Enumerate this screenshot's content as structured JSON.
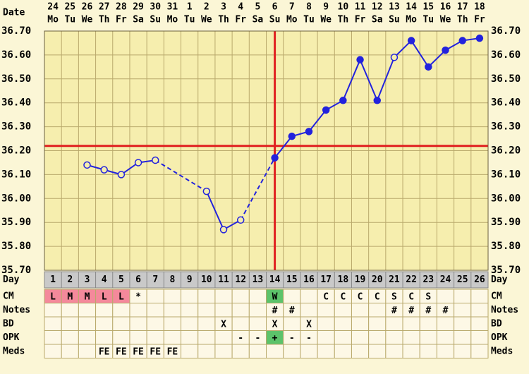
{
  "chart_data": {
    "type": "fertility",
    "header_label": "Date",
    "dates": [
      24,
      25,
      26,
      27,
      28,
      29,
      30,
      31,
      1,
      2,
      3,
      4,
      5,
      6,
      7,
      8,
      9,
      10,
      11,
      12,
      13,
      14,
      15,
      16,
      17,
      18
    ],
    "weekdays": [
      "Mo",
      "Tu",
      "We",
      "Th",
      "Fr",
      "Sa",
      "Su",
      "Mo",
      "Tu",
      "We",
      "Th",
      "Fr",
      "Sa",
      "Su",
      "Mo",
      "Tu",
      "We",
      "Th",
      "Fr",
      "Sa",
      "Su",
      "Mo",
      "Tu",
      "We",
      "Th",
      "Fr"
    ],
    "ylim": [
      35.7,
      36.7
    ],
    "yticks": [
      {
        "value": 35.7,
        "label": "35.70"
      },
      {
        "value": 35.8,
        "label": "35.80"
      },
      {
        "value": 35.9,
        "label": "35.90"
      },
      {
        "value": 36.0,
        "label": "36.00"
      },
      {
        "value": 36.1,
        "label": "36.10"
      },
      {
        "value": 36.2,
        "label": "36.20"
      },
      {
        "value": 36.3,
        "label": "36.30"
      },
      {
        "value": 36.4,
        "label": "36.40"
      },
      {
        "value": 36.5,
        "label": "36.50"
      },
      {
        "value": 36.6,
        "label": "36.60"
      },
      {
        "value": 36.7,
        "label": "36.70"
      }
    ],
    "grid": true,
    "days_label": "Day",
    "days": [
      1,
      2,
      3,
      4,
      5,
      6,
      7,
      8,
      9,
      10,
      11,
      12,
      13,
      14,
      15,
      16,
      17,
      18,
      19,
      20,
      21,
      22,
      23,
      24,
      25,
      26
    ],
    "temperatures": [
      null,
      null,
      36.14,
      36.12,
      36.1,
      36.15,
      36.16,
      null,
      null,
      36.03,
      35.87,
      35.91,
      null,
      36.17,
      36.26,
      36.28,
      36.37,
      36.41,
      36.58,
      36.41,
      36.59,
      36.66,
      36.55,
      36.62,
      36.66,
      36.67
    ],
    "filled": [
      false,
      false,
      false,
      false,
      false,
      false,
      false,
      false,
      false,
      false,
      false,
      false,
      false,
      true,
      true,
      true,
      true,
      true,
      true,
      true,
      false,
      true,
      true,
      true,
      true,
      true
    ],
    "color": "#2222dd",
    "coverline": 36.22,
    "ovulation_day": 14,
    "marker_line_color": "#e02020",
    "rows": [
      {
        "label": "CM",
        "cells": [
          {
            "text": "L",
            "color": "#f4899b"
          },
          {
            "text": "M",
            "color": "#f4899b"
          },
          {
            "text": "M",
            "color": "#f4899b"
          },
          {
            "text": "L",
            "color": "#f4899b"
          },
          {
            "text": "L",
            "color": "#f4899b"
          },
          "*",
          null,
          null,
          null,
          null,
          null,
          null,
          null,
          {
            "text": "W",
            "color": "#5cc36a"
          },
          null,
          null,
          "C",
          "C",
          "C",
          "C",
          "S",
          "C",
          "S",
          null,
          null,
          null
        ]
      },
      {
        "label": "Notes",
        "cells": [
          null,
          null,
          null,
          null,
          null,
          null,
          null,
          null,
          null,
          null,
          null,
          null,
          null,
          "#",
          "#",
          null,
          null,
          null,
          null,
          null,
          "#",
          "#",
          "#",
          "#",
          null,
          null
        ]
      },
      {
        "label": "BD",
        "cells": [
          null,
          null,
          null,
          null,
          null,
          null,
          null,
          null,
          null,
          null,
          "X",
          null,
          null,
          "X",
          null,
          "X",
          null,
          null,
          null,
          null,
          null,
          null,
          null,
          null,
          null,
          null
        ]
      },
      {
        "label": "OPK",
        "cells": [
          null,
          null,
          null,
          null,
          null,
          null,
          null,
          null,
          null,
          null,
          null,
          "-",
          "-",
          {
            "text": "+",
            "color": "#5cc36a"
          },
          "-",
          "-",
          null,
          null,
          null,
          null,
          null,
          null,
          null,
          null,
          null,
          null
        ]
      },
      {
        "label": "Meds",
        "cells": [
          null,
          null,
          null,
          "FE",
          "FE",
          "FE",
          "FE",
          "FE",
          null,
          null,
          null,
          null,
          null,
          null,
          null,
          null,
          null,
          null,
          null,
          null,
          null,
          null,
          null,
          null,
          null,
          null
        ]
      }
    ]
  }
}
